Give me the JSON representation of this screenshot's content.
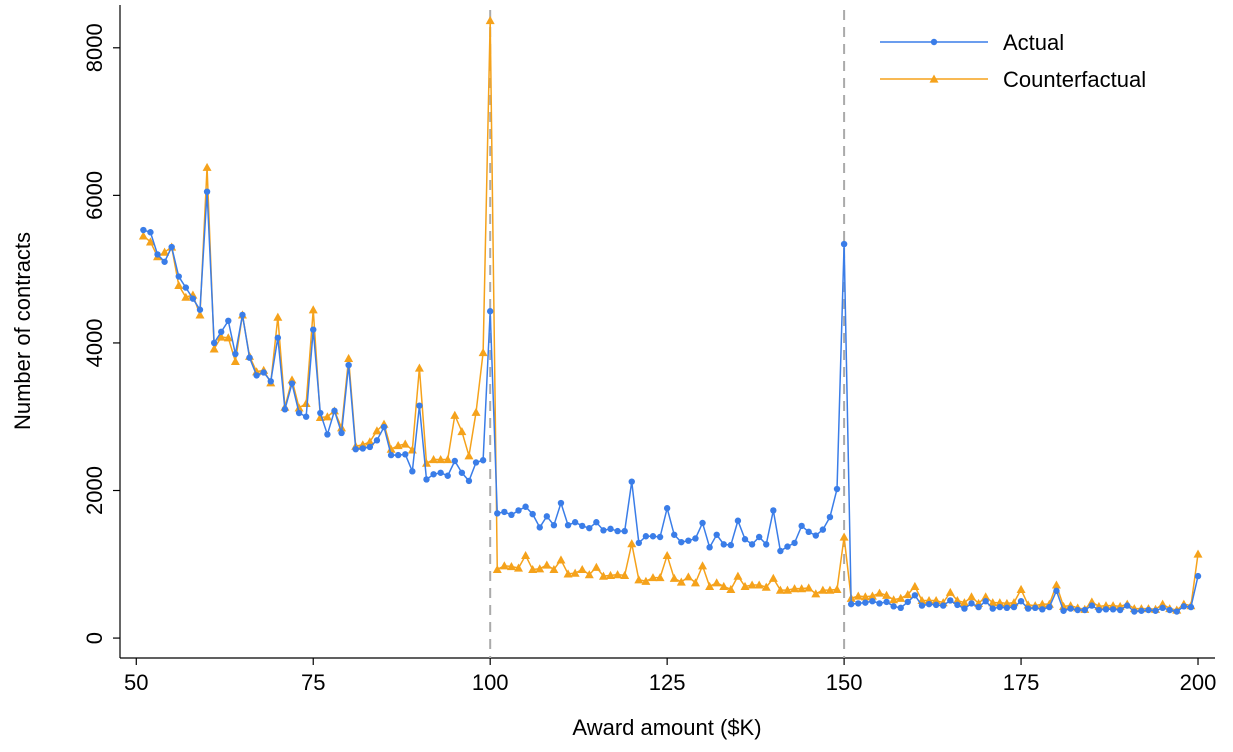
{
  "chart_data": {
    "type": "line",
    "xlabel": "Award amount ($K)",
    "ylabel": "Number of contracts",
    "x": [
      51,
      52,
      53,
      54,
      55,
      56,
      57,
      58,
      59,
      60,
      61,
      62,
      63,
      64,
      65,
      66,
      67,
      68,
      69,
      70,
      71,
      72,
      73,
      74,
      75,
      76,
      77,
      78,
      79,
      80,
      81,
      82,
      83,
      84,
      85,
      86,
      87,
      88,
      89,
      90,
      91,
      92,
      93,
      94,
      95,
      96,
      97,
      98,
      99,
      100,
      101,
      102,
      103,
      104,
      105,
      106,
      107,
      108,
      109,
      110,
      111,
      112,
      113,
      114,
      115,
      116,
      117,
      118,
      119,
      120,
      121,
      122,
      123,
      124,
      125,
      126,
      127,
      128,
      129,
      130,
      131,
      132,
      133,
      134,
      135,
      136,
      137,
      138,
      139,
      140,
      141,
      142,
      143,
      144,
      145,
      146,
      147,
      148,
      149,
      150,
      151,
      152,
      153,
      154,
      155,
      156,
      157,
      158,
      159,
      160,
      161,
      162,
      163,
      164,
      165,
      166,
      167,
      168,
      169,
      170,
      171,
      172,
      173,
      174,
      175,
      176,
      177,
      178,
      179,
      180,
      181,
      182,
      183,
      184,
      185,
      186,
      187,
      188,
      189,
      190,
      191,
      192,
      193,
      194,
      195,
      196,
      197,
      198,
      199,
      200
    ],
    "series": [
      {
        "name": "Actual",
        "color": "#3a7de8",
        "marker": "circle",
        "values": [
          5530,
          5500,
          5200,
          5100,
          5300,
          4900,
          4750,
          4600,
          4450,
          6050,
          4000,
          4150,
          4300,
          3850,
          4380,
          3800,
          3560,
          3600,
          3480,
          4070,
          3100,
          3450,
          3050,
          3000,
          4180,
          3050,
          2760,
          3080,
          2780,
          3700,
          2560,
          2570,
          2590,
          2680,
          2860,
          2480,
          2480,
          2490,
          2260,
          3150,
          2150,
          2220,
          2240,
          2200,
          2400,
          2240,
          2130,
          2380,
          2410,
          4430,
          1690,
          1710,
          1670,
          1730,
          1780,
          1680,
          1500,
          1650,
          1530,
          1830,
          1530,
          1570,
          1520,
          1490,
          1570,
          1460,
          1480,
          1450,
          1450,
          2120,
          1290,
          1380,
          1380,
          1370,
          1760,
          1400,
          1300,
          1320,
          1350,
          1560,
          1230,
          1400,
          1270,
          1260,
          1590,
          1340,
          1270,
          1370,
          1270,
          1730,
          1180,
          1240,
          1290,
          1520,
          1440,
          1390,
          1470,
          1640,
          2020,
          5340,
          460,
          470,
          480,
          500,
          470,
          490,
          430,
          410,
          490,
          580,
          440,
          460,
          450,
          440,
          510,
          450,
          400,
          470,
          420,
          500,
          400,
          420,
          410,
          420,
          500,
          400,
          410,
          390,
          420,
          640,
          370,
          400,
          380,
          380,
          440,
          380,
          390,
          390,
          380,
          440,
          360,
          370,
          380,
          370,
          410,
          380,
          360,
          430,
          420,
          840
        ]
      },
      {
        "name": "Counterfactual",
        "color": "#f5a21b",
        "marker": "triangle",
        "values": [
          5450,
          5370,
          5170,
          5230,
          5300,
          4780,
          4620,
          4650,
          4380,
          6380,
          3920,
          4080,
          4070,
          3750,
          4380,
          3820,
          3610,
          3630,
          3460,
          4350,
          3130,
          3500,
          3120,
          3180,
          4450,
          2990,
          3000,
          3080,
          2850,
          3790,
          2600,
          2620,
          2660,
          2810,
          2900,
          2560,
          2610,
          2630,
          2550,
          3660,
          2370,
          2420,
          2420,
          2420,
          3020,
          2800,
          2470,
          3060,
          3870,
          8370,
          930,
          980,
          970,
          950,
          1120,
          930,
          940,
          990,
          930,
          1060,
          870,
          880,
          930,
          860,
          960,
          840,
          850,
          860,
          850,
          1280,
          790,
          770,
          820,
          820,
          1120,
          810,
          760,
          830,
          750,
          980,
          700,
          750,
          700,
          660,
          840,
          700,
          720,
          720,
          690,
          810,
          650,
          650,
          670,
          670,
          680,
          600,
          650,
          650,
          660,
          1370,
          540,
          570,
          560,
          570,
          610,
          580,
          520,
          540,
          590,
          700,
          510,
          510,
          510,
          480,
          620,
          510,
          480,
          560,
          470,
          560,
          480,
          480,
          470,
          480,
          660,
          450,
          440,
          460,
          460,
          720,
          430,
          440,
          410,
          390,
          490,
          430,
          440,
          440,
          430,
          460,
          400,
          400,
          400,
          390,
          460,
          400,
          380,
          460,
          440,
          1140
        ]
      }
    ],
    "xlim": [
      47.7,
      202.4
    ],
    "ylim": [
      -270,
      8580
    ],
    "xticks": [
      50,
      75,
      100,
      125,
      150,
      175,
      200
    ],
    "yticks": [
      0,
      2000,
      4000,
      6000,
      8000
    ],
    "vlines": [
      100,
      150
    ],
    "grid": false,
    "legend": "upper right"
  }
}
